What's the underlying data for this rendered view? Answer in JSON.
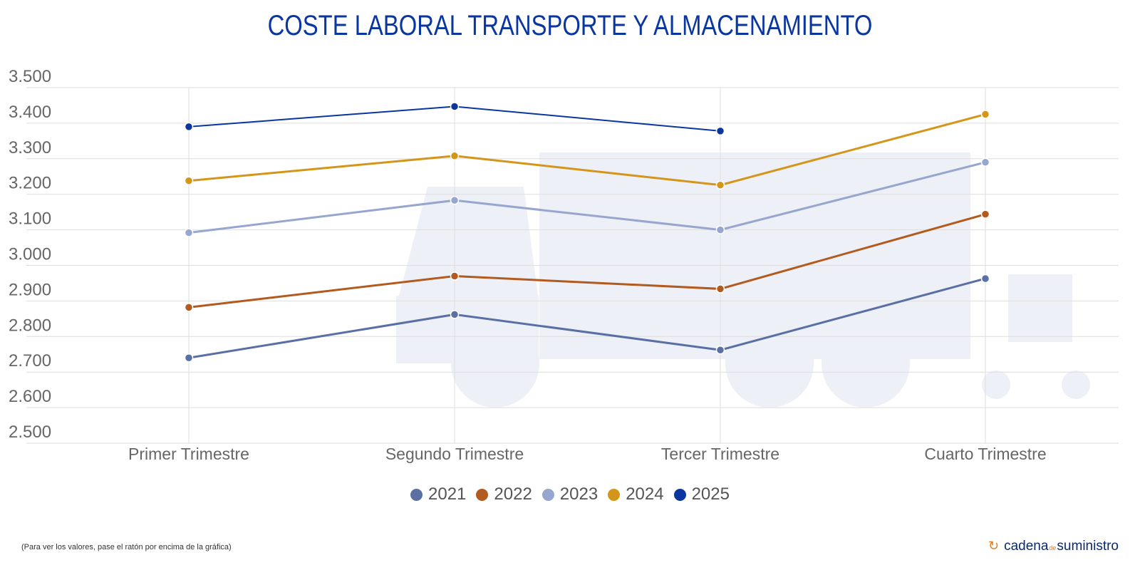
{
  "title": "COSTE LABORAL TRANSPORTE Y ALMACENAMIENTO",
  "chart_data": {
    "type": "line",
    "title": "COSTE LABORAL TRANSPORTE Y ALMACENAMIENTO",
    "xlabel": "",
    "ylabel": "",
    "categories": [
      "Primer Trimestre",
      "Segundo Trimestre",
      "Tercer Trimestre",
      "Cuarto Trimestre"
    ],
    "ylim": [
      2500,
      3500
    ],
    "yticks": [
      2500,
      2600,
      2700,
      2800,
      2900,
      3000,
      3100,
      3200,
      3300,
      3400,
      3500
    ],
    "ytick_labels": [
      "2.500",
      "2.600",
      "2.700",
      "2.800",
      "2.900",
      "3.000",
      "3.100",
      "3.200",
      "3.300",
      "3.400",
      "3.500"
    ],
    "grid": true,
    "legend_position": "bottom",
    "series": [
      {
        "name": "2021",
        "color": "#5a6fa3",
        "values": [
          2740,
          2862,
          2762,
          2963
        ]
      },
      {
        "name": "2022",
        "color": "#b35a1f",
        "values": [
          2882,
          2970,
          2934,
          3144
        ]
      },
      {
        "name": "2023",
        "color": "#97a6cf",
        "values": [
          3092,
          3183,
          3100,
          3290
        ]
      },
      {
        "name": "2024",
        "color": "#d4961a",
        "values": [
          3238,
          3308,
          3226,
          3425
        ]
      },
      {
        "name": "2025",
        "color": "#0a36a0",
        "values": [
          3390,
          3447,
          3378,
          null
        ]
      }
    ]
  },
  "footer_note": "(Para ver los valores, pase el ratón por encima de la gráfica)",
  "logo": {
    "part1": "cadena",
    "part2": "de",
    "part3": "suministro"
  }
}
